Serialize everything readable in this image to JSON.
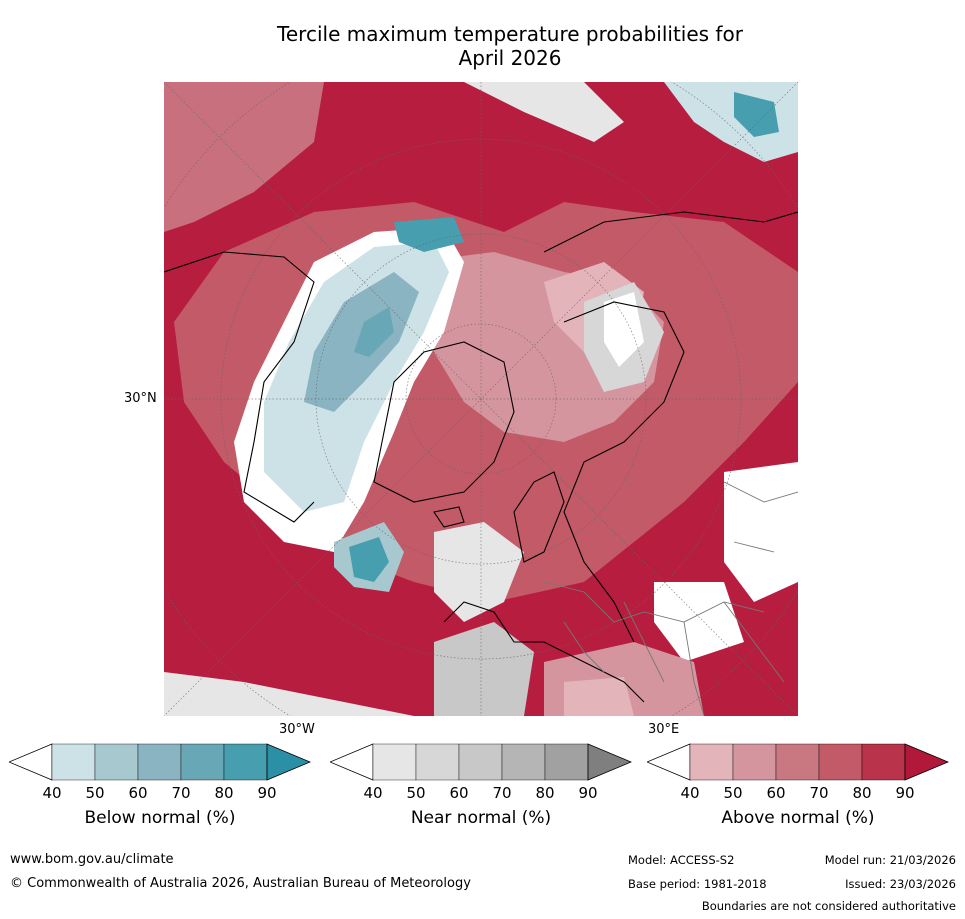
{
  "title_line1": "Tercile maximum temperature probabilities for",
  "title_line2": "April 2026",
  "map": {
    "projection": "north polar stereographic",
    "axis_labels": {
      "left": "30°N",
      "bottom_left": "30°W",
      "bottom_right": "30°E"
    }
  },
  "colorbars": [
    {
      "label": "Below normal (%)",
      "ticks": [
        "40",
        "50",
        "60",
        "70",
        "80",
        "90"
      ],
      "colors": [
        "#ffffff",
        "#cde2e7",
        "#a8c8cf",
        "#8ab4c1",
        "#68a7b5",
        "#479eae",
        "#2b8fa5"
      ]
    },
    {
      "label": "Near normal (%)",
      "ticks": [
        "40",
        "50",
        "60",
        "70",
        "80",
        "90"
      ],
      "colors": [
        "#ffffff",
        "#e6e6e6",
        "#d7d7d7",
        "#c8c8c8",
        "#b5b5b5",
        "#a1a1a1",
        "#7f7f7f"
      ]
    },
    {
      "label": "Above normal (%)",
      "ticks": [
        "40",
        "50",
        "60",
        "70",
        "80",
        "90"
      ],
      "colors": [
        "#ffffff",
        "#e3b5bb",
        "#d4959e",
        "#c97882",
        "#c25a68",
        "#b9334a",
        "#b1183a"
      ]
    }
  ],
  "footer": {
    "url": "www.bom.gov.au/climate",
    "copyright": "© Commonwealth of Australia 2026, Australian Bureau of Meteorology",
    "model": "Model: ACCESS-S2",
    "model_run": "Model run: 21/03/2026",
    "base_period": "Base period: 1981-2018",
    "issued": "Issued: 23/03/2026",
    "disclaimer": "Boundaries are not considered authoritative"
  }
}
